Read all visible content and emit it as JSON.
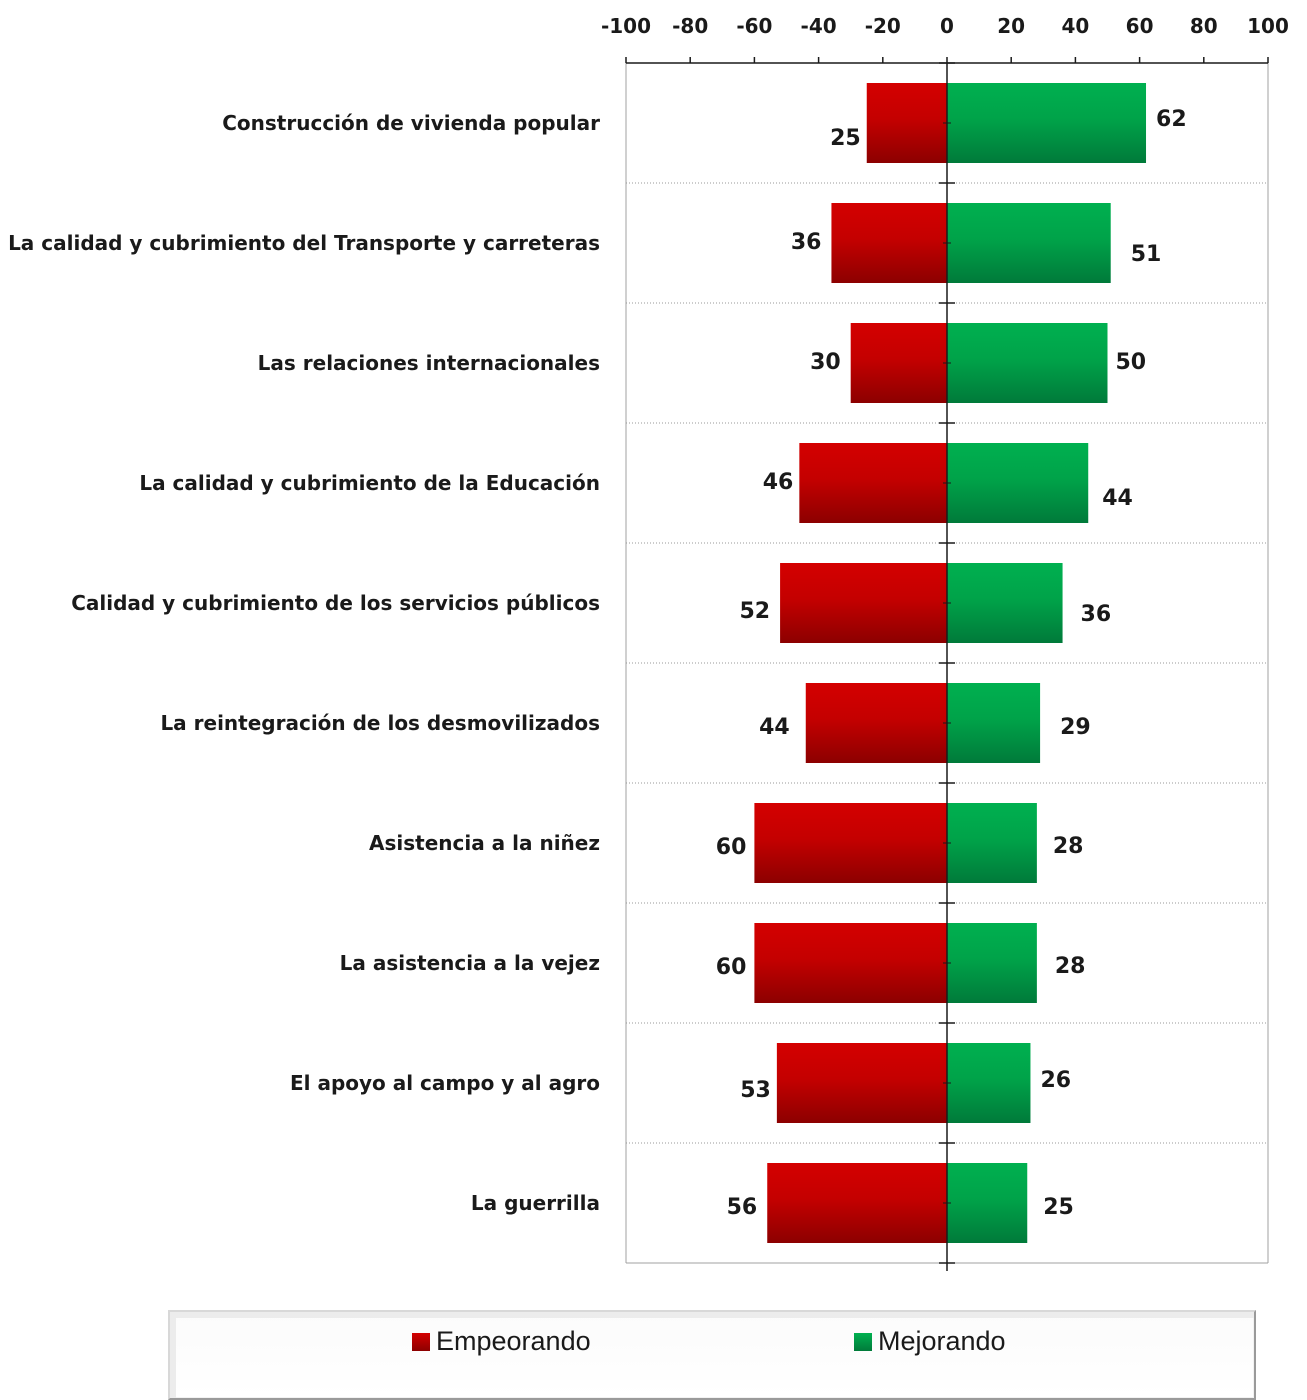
{
  "chart_data": {
    "type": "bar",
    "orientation": "horizontal-diverging",
    "title": "",
    "xlabel": "",
    "ylabel": "",
    "xlim": [
      -100,
      100
    ],
    "x_ticks": [
      "-100",
      "-80",
      "-60",
      "-40",
      "-20",
      "0",
      "20",
      "40",
      "60",
      "80",
      "100"
    ],
    "x_tick_values": [
      -100,
      -80,
      -60,
      -40,
      -20,
      0,
      20,
      40,
      60,
      80,
      100
    ],
    "x_axis_position": "top",
    "grid": "horizontal-dotted",
    "legend_position": "bottom",
    "categories": [
      "Construcción de vivienda popular",
      "La calidad y cubrimiento del Transporte y carreteras",
      "Las relaciones internacionales",
      "La calidad y cubrimiento de la Educación",
      "Calidad y cubrimiento de los servicios públicos",
      "La reintegración de los desmovilizados",
      "Asistencia a la niñez",
      "La asistencia a la vejez",
      "El apoyo al campo y al agro",
      "La guerrilla"
    ],
    "series": [
      {
        "name": "Empeorando",
        "color": "#cc0000",
        "direction": "negative",
        "values": [
          25,
          36,
          30,
          46,
          52,
          44,
          60,
          60,
          53,
          56
        ],
        "labels": [
          "25",
          "36",
          "30",
          "46",
          "52",
          "44",
          "60",
          "60",
          "53",
          "56"
        ]
      },
      {
        "name": "Mejorando",
        "color": "#00a84f",
        "direction": "positive",
        "values": [
          62,
          51,
          50,
          44,
          36,
          29,
          28,
          28,
          26,
          25
        ],
        "labels": [
          "62",
          "51",
          "50",
          "44",
          "36",
          "29",
          "28",
          "28",
          "26",
          "25"
        ]
      }
    ]
  },
  "legend": {
    "items": [
      {
        "label": "Empeorando",
        "color": "#cc0000"
      },
      {
        "label": "Mejorando",
        "color": "#00a84f"
      }
    ]
  }
}
